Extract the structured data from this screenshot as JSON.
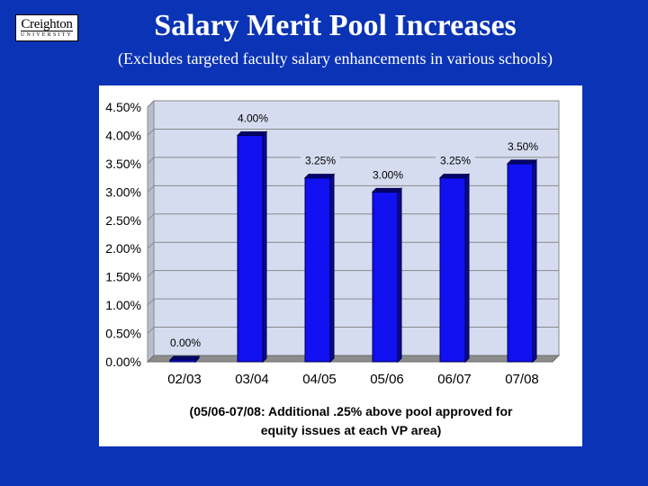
{
  "header": {
    "logo_word": "Creighton",
    "logo_sub": "UNIVERSITY",
    "title": "Salary Merit Pool Increases",
    "subtitle": "(Excludes targeted faculty salary enhancements in various schools)"
  },
  "chart_data": {
    "type": "bar",
    "categories": [
      "02/03",
      "03/04",
      "04/05",
      "05/06",
      "06/07",
      "07/08"
    ],
    "values": [
      0.0,
      4.0,
      3.25,
      3.0,
      3.25,
      3.5
    ],
    "data_labels": [
      "0.00%",
      "4.00%",
      "3.25%",
      "3.00%",
      "3.25%",
      "3.50%"
    ],
    "y_ticks": [
      "0.00%",
      "0.50%",
      "1.00%",
      "1.50%",
      "2.00%",
      "2.50%",
      "3.00%",
      "3.50%",
      "4.00%",
      "4.50%"
    ],
    "ylim": [
      0,
      4.5
    ],
    "grid": true,
    "legend": "none",
    "note_lines": [
      "(05/06-07/08: Additional .25% above pool approved for",
      "equity issues at each VP area)"
    ],
    "colors": {
      "bar": "#1010f0",
      "bar_top": "#05056e",
      "plot_bg": "#d6dcf0",
      "floor": "#8c8c8c"
    }
  }
}
